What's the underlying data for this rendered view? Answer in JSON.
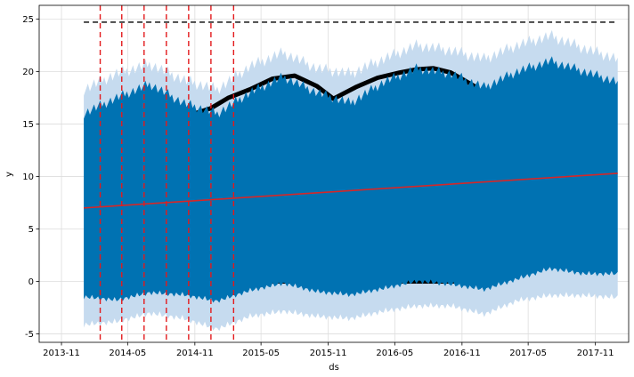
{
  "chart_data": {
    "type": "line",
    "title": "",
    "xlabel": "ds",
    "ylabel": "y",
    "x_ticks": [
      "2013-11",
      "2014-05",
      "2014-11",
      "2015-05",
      "2015-11",
      "2016-05",
      "2016-11",
      "2017-05",
      "2017-11"
    ],
    "y_ticks": [
      -5,
      0,
      5,
      10,
      15,
      20,
      25
    ],
    "xlim": [
      "2013-09-01",
      "2018-01-31"
    ],
    "ylim": [
      -5.8,
      26.3
    ],
    "grid": true,
    "series": [
      {
        "kind": "forecast_mean_envelope",
        "color": "#0072B2",
        "x": [
          "2014-01-01",
          "2014-04-01",
          "2014-07-01",
          "2014-10-01",
          "2015-01-01",
          "2015-04-01",
          "2015-07-01",
          "2015-10-01",
          "2016-01-01",
          "2016-04-01",
          "2016-07-01",
          "2016-10-01",
          "2017-01-01",
          "2017-04-01",
          "2017-07-01",
          "2017-10-01",
          "2018-01-01"
        ],
        "upper": [
          16.0,
          17.5,
          18.8,
          17.0,
          16.0,
          18.0,
          19.5,
          18.0,
          17.0,
          19.0,
          20.3,
          19.8,
          18.5,
          20.0,
          21.0,
          20.0,
          19.0
        ],
        "lower": [
          -1.2,
          -1.5,
          -0.8,
          -1.0,
          -1.6,
          -0.6,
          0.1,
          -0.7,
          -1.0,
          -0.4,
          0.3,
          0.0,
          -0.5,
          0.5,
          1.5,
          1.0,
          1.0
        ]
      },
      {
        "kind": "uncertainty_interval",
        "color": "#C6DBEF",
        "x": [
          "2014-01-01",
          "2014-04-01",
          "2014-07-01",
          "2014-10-01",
          "2015-01-01",
          "2015-04-01",
          "2015-07-01",
          "2015-10-01",
          "2016-01-01",
          "2016-04-01",
          "2016-07-01",
          "2016-10-01",
          "2017-01-01",
          "2017-04-01",
          "2017-07-01",
          "2017-10-01",
          "2018-01-01"
        ],
        "upper": [
          18.3,
          19.8,
          20.7,
          19.2,
          18.3,
          20.5,
          21.8,
          20.3,
          19.8,
          21.2,
          22.5,
          22.0,
          21.2,
          22.5,
          23.4,
          22.2,
          21.2
        ],
        "lower": [
          -3.8,
          -3.5,
          -2.7,
          -3.2,
          -4.2,
          -3.0,
          -2.5,
          -3.0,
          -3.2,
          -2.5,
          -2.0,
          -2.0,
          -2.8,
          -1.5,
          -1.0,
          -1.0,
          -1.2
        ]
      },
      {
        "kind": "observed_points",
        "color": "#000000",
        "top_x": [
          "2014-09-15",
          "2014-11-01",
          "2014-12-15",
          "2015-02-01",
          "2015-04-01",
          "2015-06-01",
          "2015-08-01",
          "2015-10-01",
          "2015-11-15",
          "2016-01-15",
          "2016-03-15",
          "2016-05-15",
          "2016-07-01",
          "2016-08-15",
          "2016-10-01",
          "2016-11-15",
          "2016-12-15"
        ],
        "top_y": [
          16.2,
          16.0,
          16.5,
          17.5,
          18.3,
          19.3,
          19.6,
          18.6,
          17.4,
          18.5,
          19.4,
          19.9,
          20.2,
          20.3,
          19.9,
          19.0,
          18.4
        ],
        "zero_x_range": [
          "2014-02-01",
          "2016-12-31"
        ],
        "zero_y": 0
      },
      {
        "kind": "trend",
        "color": "#D62728",
        "x": [
          "2014-01-01",
          "2018-01-01"
        ],
        "y": [
          7.0,
          10.3
        ]
      },
      {
        "kind": "capacity",
        "color": "#000000",
        "style": "dashed",
        "x": [
          "2014-01-01",
          "2018-01-01"
        ],
        "y": [
          24.7,
          24.7
        ]
      }
    ],
    "changepoints": {
      "color": "#E31A1C",
      "style": "dashed",
      "dates": [
        "2014-02-15",
        "2014-04-15",
        "2014-06-15",
        "2014-08-15",
        "2014-10-15",
        "2014-12-15",
        "2015-02-15"
      ]
    }
  }
}
